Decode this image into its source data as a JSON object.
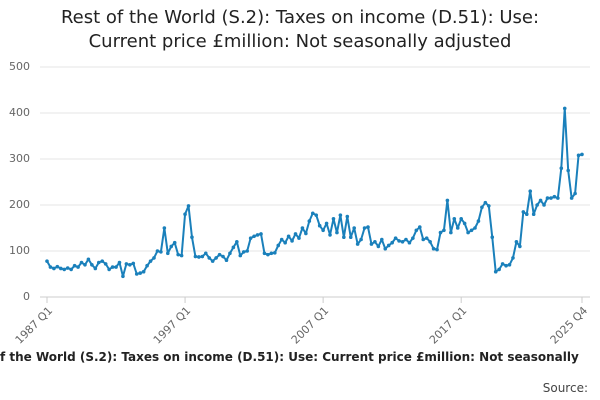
{
  "chart_data": {
    "type": "line",
    "title": "Rest of the World (S.2): Taxes on income (D.51): Use: Current price £million: Not seasonally adjusted",
    "footer": "f the World (S.2): Taxes on income (D.51): Use: Current price £million: Not seasonally",
    "source": "Source:",
    "categories": [
      "1987 Q1",
      null,
      null,
      null,
      null,
      null,
      null,
      null,
      null,
      null,
      null,
      null,
      null,
      null,
      null,
      null,
      null,
      null,
      null,
      null,
      null,
      null,
      null,
      null,
      null,
      null,
      null,
      null,
      null,
      null,
      null,
      null,
      null,
      null,
      null,
      null,
      null,
      null,
      null,
      null,
      "1997 Q1",
      null,
      null,
      null,
      null,
      null,
      null,
      null,
      null,
      null,
      null,
      null,
      null,
      null,
      null,
      null,
      null,
      null,
      null,
      null,
      null,
      null,
      null,
      null,
      null,
      null,
      null,
      null,
      null,
      null,
      null,
      null,
      null,
      null,
      null,
      null,
      null,
      null,
      null,
      null,
      "2007 Q1",
      null,
      null,
      null,
      null,
      null,
      null,
      null,
      null,
      null,
      null,
      null,
      null,
      null,
      null,
      null,
      null,
      null,
      null,
      null,
      null,
      null,
      null,
      null,
      null,
      null,
      null,
      null,
      null,
      null,
      null,
      null,
      null,
      null,
      null,
      null,
      null,
      null,
      null,
      null,
      "2017 Q1",
      null,
      null,
      null,
      null,
      null,
      null,
      null,
      null,
      null,
      null,
      null,
      null,
      null,
      null,
      null,
      null,
      null,
      null,
      null,
      null,
      null,
      null,
      null,
      null,
      null,
      null,
      null,
      null,
      null,
      null,
      null,
      null,
      null,
      null,
      "2025 Q4"
    ],
    "series": [
      {
        "color": "#1a80bb",
        "values": [
          78,
          65,
          62,
          66,
          62,
          60,
          63,
          60,
          68,
          65,
          75,
          70,
          82,
          70,
          62,
          75,
          78,
          72,
          60,
          65,
          65,
          75,
          45,
          72,
          70,
          73,
          50,
          52,
          55,
          68,
          78,
          85,
          100,
          98,
          150,
          95,
          110,
          118,
          92,
          90,
          180,
          198,
          130,
          88,
          87,
          88,
          95,
          85,
          78,
          85,
          92,
          88,
          80,
          95,
          108,
          120,
          90,
          98,
          100,
          128,
          132,
          135,
          137,
          95,
          92,
          95,
          96,
          112,
          125,
          118,
          132,
          122,
          137,
          128,
          150,
          138,
          165,
          182,
          178,
          155,
          145,
          160,
          135,
          170,
          140,
          178,
          130,
          175,
          130,
          150,
          115,
          125,
          150,
          152,
          115,
          120,
          110,
          125,
          105,
          112,
          118,
          128,
          122,
          120,
          125,
          118,
          128,
          145,
          152,
          125,
          128,
          120,
          105,
          103,
          140,
          145,
          210,
          140,
          170,
          150,
          170,
          160,
          140,
          145,
          150,
          165,
          195,
          205,
          198,
          130,
          55,
          60,
          72,
          68,
          70,
          85,
          120,
          110,
          185,
          180,
          230,
          180,
          200,
          210,
          200,
          215,
          215,
          218,
          215,
          280,
          410,
          275,
          215,
          225,
          308,
          310
        ]
      }
    ],
    "ylim": [
      0,
      500
    ],
    "yticks": [
      0,
      100,
      200,
      300,
      400,
      500
    ],
    "grid": true
  }
}
